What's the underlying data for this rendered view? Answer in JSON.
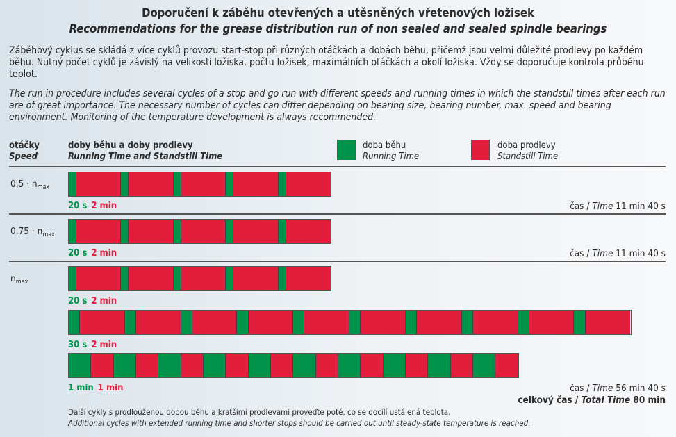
{
  "title_cz": "Doporučení k záběhu otevřených a utěsněných vřetenových ložisek",
  "title_en": "Recommendations for the grease distribution run of non sealed and sealed spindle bearings",
  "intro_cz": "Záběhový cyklus se skládá z více cyklů provozu start-stop při různých otáčkách a dobách běhu, přičemž jsou velmi důležité prodlevy po každém běhu. Nutný počet cyklů je závislý na velikosti ložiska, počtu ložisek, maximálních otáčkách a okolí ložiska. Vždy se doporučuje kontrola průběhu teplot.",
  "intro_en": "The run in procedure includes several cycles of a stop and go run with different speeds and running times in which the standstill times after each run are of great importance. The necessary number of cycles can differ depending on bearing size, bearing number, max. speed and bearing environment. Monitoring of the temperature development is always recommended.",
  "header": {
    "speed_cz": "otáčky",
    "speed_en": "Speed",
    "times_cz": "doby běhu a doby prodlevy",
    "times_en": "Running Time and Standstill Time"
  },
  "legend": [
    {
      "cz": "doba běhu",
      "en": "Running Time",
      "color": "#00944a"
    },
    {
      "cz": "doba prodlevy",
      "en": "Standstill Time",
      "color": "#e31d3c"
    }
  ],
  "colors": {
    "run": "#00944a",
    "stop": "#e31d3c"
  },
  "rows": [
    {
      "speed": "0,5 · n",
      "sub": "max",
      "run_label": "20 s",
      "stop_label": "2 min",
      "run_s": 20,
      "stop_s": 120,
      "cycles": 5,
      "time_label": "čas / ",
      "time_it": "Time",
      "time_val": " 11 min 40 s"
    },
    {
      "speed": "0,75 · n",
      "sub": "max",
      "run_label": "20 s",
      "stop_label": "2 min",
      "run_s": 20,
      "stop_s": 120,
      "cycles": 5,
      "time_label": "čas / ",
      "time_it": "Time",
      "time_val": " 11 min 40 s"
    },
    {
      "speed": "n",
      "sub": "max",
      "run_label": "20 s",
      "stop_label": "2 min",
      "run_s": 20,
      "stop_s": 120,
      "cycles": 5
    },
    {
      "run_label": "30 s",
      "stop_label": "2 min",
      "run_s": 30,
      "stop_s": 120,
      "cycles": 10
    },
    {
      "run_label": "1 min",
      "stop_label": "1 min",
      "run_s": 60,
      "stop_s": 60,
      "cycles": 10,
      "time_label": "čas / ",
      "time_it": "Time",
      "time_val": " 56 min 40 s"
    }
  ],
  "total": {
    "label": "celkový čas / ",
    "label_it": "Total Time",
    "value": " 80 min"
  },
  "note_cz": "Další cykly s prodlouženou dobou běhu a kratšími prodlevami proveďte poté, co se docílí ustálená teplota.",
  "note_en": "Additional cycles with extended running time and shorter stops should be carried out until steady-state temperature is reached."
}
